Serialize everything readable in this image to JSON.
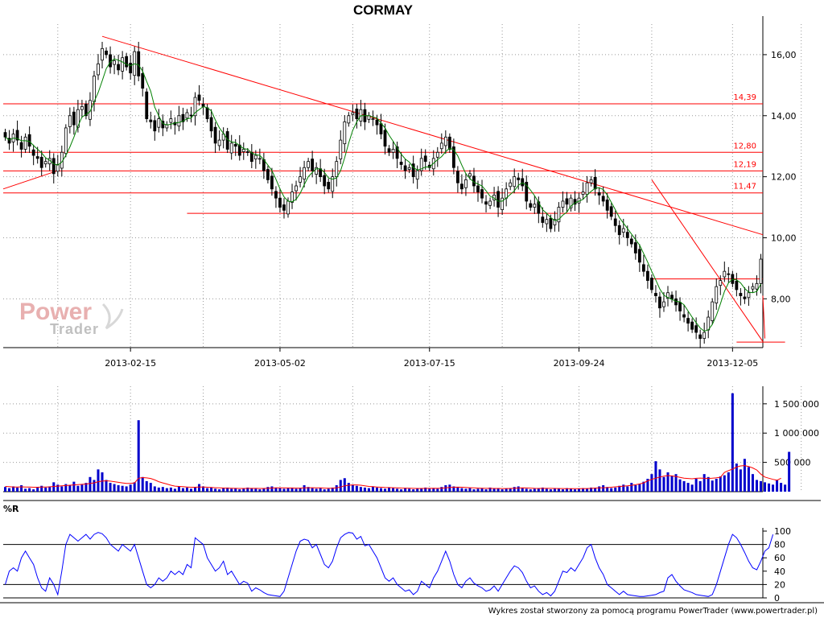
{
  "title": "CORMAY",
  "footer": "Wykres został stworzony za pomocą programu PowerTrader (www.powertrader.pl)",
  "logo": {
    "line1": "Power",
    "line2": "Trader"
  },
  "colors": {
    "up_candle": "#ffffff",
    "down_candle": "#000000",
    "moving_average": "#008000",
    "trend_lines": "#ff0000",
    "volume_bars": "#0000cc",
    "volume_average": "#ff0000",
    "williams_r": "#0000ff",
    "grid": "#999999"
  },
  "chart_data": [
    {
      "type": "candlestick",
      "title": "CORMAY",
      "x_tick_labels": [
        "2013-02-15",
        "2013-05-02",
        "2013-07-15",
        "2013-09-24",
        "2013-12-05"
      ],
      "y_tick_labels": [
        "8,00",
        "10,00",
        "12,00",
        "14,00",
        "16,00"
      ],
      "ylim": [
        6.4,
        17.0
      ],
      "grid": true,
      "close_series": [
        13.3,
        13.1,
        13.4,
        13.2,
        12.9,
        13.3,
        13.0,
        12.7,
        12.6,
        12.3,
        12.5,
        12.6,
        12.1,
        12.4,
        12.8,
        13.6,
        14.0,
        13.7,
        14.2,
        14.3,
        14.0,
        14.5,
        15.3,
        15.7,
        16.2,
        16.0,
        15.6,
        15.8,
        15.5,
        15.9,
        15.6,
        15.4,
        16.1,
        15.3,
        14.9,
        13.9,
        13.8,
        13.5,
        13.9,
        13.6,
        13.7,
        13.9,
        13.7,
        14.0,
        13.8,
        14.1,
        14.0,
        14.6,
        14.5,
        14.3,
        13.9,
        13.5,
        13.1,
        13.2,
        13.4,
        12.9,
        13.1,
        13.0,
        12.7,
        12.9,
        12.8,
        12.5,
        12.7,
        12.6,
        12.2,
        11.9,
        11.6,
        11.3,
        11.0,
        10.9,
        11.2,
        11.5,
        11.7,
        12.0,
        12.3,
        12.5,
        12.2,
        12.3,
        12.0,
        11.7,
        11.6,
        12.0,
        12.5,
        13.2,
        13.8,
        14.0,
        14.1,
        13.9,
        14.2,
        13.8,
        14.0,
        13.9,
        13.7,
        13.4,
        13.0,
        12.8,
        12.9,
        12.6,
        12.4,
        12.2,
        12.3,
        12.0,
        12.2,
        12.6,
        12.5,
        12.3,
        12.6,
        12.8,
        13.1,
        13.3,
        12.9,
        12.3,
        11.8,
        11.6,
        11.9,
        12.1,
        11.7,
        11.5,
        11.3,
        11.1,
        11.2,
        11.4,
        11.0,
        11.3,
        11.6,
        11.8,
        12.0,
        11.9,
        11.7,
        11.2,
        11.0,
        11.1,
        10.8,
        10.5,
        10.6,
        10.3,
        10.6,
        11.0,
        11.2,
        11.1,
        11.3,
        11.1,
        11.3,
        11.5,
        11.8,
        11.9,
        11.6,
        11.4,
        11.2,
        10.9,
        10.7,
        10.4,
        10.1,
        10.3,
        10.0,
        9.8,
        9.5,
        9.2,
        8.9,
        8.6,
        8.3,
        8.1,
        7.7,
        7.9,
        8.2,
        8.0,
        7.8,
        7.6,
        7.4,
        7.2,
        7.0,
        6.9,
        6.7,
        6.9,
        7.4,
        7.9,
        8.4,
        8.6,
        8.9,
        8.8,
        8.5,
        8.3,
        8.1,
        8.0,
        8.2,
        8.4,
        8.5,
        9.3
      ],
      "moving_average_period_label": "",
      "horizontal_levels": [
        {
          "value": 14.39,
          "label": "14,39"
        },
        {
          "value": 12.8,
          "label": "12,80"
        },
        {
          "value": 12.19,
          "label": "12,19"
        },
        {
          "value": 11.47,
          "label": "11,47"
        },
        {
          "value": 10.8,
          "label": ""
        },
        {
          "value": 8.65,
          "label": ""
        },
        {
          "value": 6.58,
          "label": ""
        }
      ],
      "trend_lines": [
        {
          "from": [
            0,
            11.6
          ],
          "to": [
            13,
            12.2
          ]
        },
        {
          "from": [
            24,
            16.6
          ],
          "to": [
            208,
            10.1
          ]
        },
        {
          "from": [
            160,
            11.9
          ],
          "to": [
            188,
            6.6
          ]
        },
        {
          "from": [
            188,
            6.7
          ],
          "to": [
            208,
            8.1
          ]
        }
      ]
    },
    {
      "type": "bar",
      "title": "",
      "y_tick_labels": [
        "500 000",
        "1 000 000",
        "1 500 000"
      ],
      "ylim": [
        0,
        1800000
      ],
      "volume": [
        80000,
        60000,
        90000,
        70000,
        110000,
        50000,
        60000,
        40000,
        80000,
        100000,
        70000,
        90000,
        160000,
        120000,
        90000,
        130000,
        110000,
        170000,
        100000,
        120000,
        150000,
        250000,
        200000,
        380000,
        330000,
        200000,
        150000,
        130000,
        110000,
        100000,
        90000,
        120000,
        160000,
        1220000,
        250000,
        180000,
        150000,
        90000,
        70000,
        80000,
        60000,
        70000,
        50000,
        90000,
        60000,
        70000,
        50000,
        80000,
        130000,
        90000,
        60000,
        70000,
        50000,
        40000,
        60000,
        70000,
        50000,
        60000,
        40000,
        50000,
        70000,
        60000,
        50000,
        40000,
        60000,
        80000,
        90000,
        70000,
        60000,
        50000,
        60000,
        70000,
        50000,
        60000,
        110000,
        80000,
        60000,
        50000,
        60000,
        40000,
        50000,
        70000,
        110000,
        200000,
        230000,
        150000,
        120000,
        100000,
        80000,
        70000,
        60000,
        90000,
        70000,
        60000,
        50000,
        70000,
        60000,
        50000,
        40000,
        60000,
        50000,
        40000,
        50000,
        60000,
        70000,
        50000,
        60000,
        50000,
        80000,
        110000,
        120000,
        90000,
        70000,
        60000,
        50000,
        60000,
        40000,
        50000,
        60000,
        40000,
        70000,
        50000,
        60000,
        40000,
        50000,
        60000,
        80000,
        90000,
        60000,
        50000,
        40000,
        50000,
        60000,
        70000,
        50000,
        40000,
        60000,
        50000,
        40000,
        60000,
        50000,
        40000,
        50000,
        60000,
        50000,
        70000,
        60000,
        90000,
        110000,
        80000,
        60000,
        70000,
        100000,
        120000,
        90000,
        150000,
        110000,
        130000,
        170000,
        220000,
        300000,
        520000,
        380000,
        250000,
        330000,
        270000,
        300000,
        210000,
        180000,
        150000,
        120000,
        220000,
        180000,
        300000,
        250000,
        190000,
        220000,
        260000,
        280000,
        330000,
        1680000,
        480000,
        380000,
        560000,
        420000,
        300000,
        200000,
        180000,
        160000,
        140000,
        120000,
        200000,
        150000,
        120000,
        680000
      ],
      "volume_average": [
        90000,
        85000,
        80000,
        80000,
        82000,
        80000,
        78000,
        75000,
        75000,
        78000,
        80000,
        82000,
        90000,
        95000,
        100000,
        105000,
        110000,
        115000,
        120000,
        125000,
        130000,
        140000,
        150000,
        170000,
        180000,
        185000,
        180000,
        170000,
        160000,
        150000,
        140000,
        140000,
        150000,
        230000,
        240000,
        235000,
        225000,
        200000,
        170000,
        150000,
        130000,
        110000,
        95000,
        90000,
        85000,
        80000,
        75000,
        75000,
        80000,
        80000,
        75000,
        72000,
        68000,
        65000,
        62000,
        60000,
        58000,
        57000,
        55000,
        55000,
        56000,
        57000,
        56000,
        55000,
        55000,
        58000,
        62000,
        65000,
        66000,
        65000,
        63000,
        62000,
        61000,
        60000,
        65000,
        68000,
        68000,
        66000,
        64000,
        60000,
        58000,
        60000,
        66000,
        80000,
        100000,
        110000,
        115000,
        115000,
        110000,
        100000,
        90000,
        85000,
        80000,
        76000,
        72000,
        70000,
        68000,
        66000,
        62000,
        60000,
        58000,
        56000,
        55000,
        55000,
        57000,
        57000,
        58000,
        57000,
        60000,
        66000,
        72000,
        76000,
        77000,
        75000,
        72000,
        68000,
        64000,
        60000,
        58000,
        56000,
        56000,
        55000,
        55000,
        54000,
        54000,
        55000,
        58000,
        62000,
        64000,
        63000,
        60000,
        57000,
        55000,
        56000,
        57000,
        56000,
        55000,
        54000,
        53000,
        52000,
        52000,
        52000,
        52000,
        53000,
        54000,
        56000,
        62000,
        66000,
        68000,
        70000,
        75000,
        82000,
        88000,
        95000,
        100000,
        108000,
        118000,
        132000,
        150000,
        185000,
        210000,
        230000,
        250000,
        265000,
        275000,
        270000,
        260000,
        245000,
        230000,
        225000,
        220000,
        228000,
        232000,
        228000,
        226000,
        230000,
        236000,
        246000,
        330000,
        360000,
        385000,
        420000,
        440000,
        445000,
        430000,
        405000,
        370000,
        300000,
        250000,
        230000,
        210000,
        195000,
        230000
      ]
    },
    {
      "type": "line",
      "title": "%R",
      "y_tick_labels": [
        "0",
        "20",
        "40",
        "60",
        "80",
        "100"
      ],
      "ylim": [
        0,
        100
      ],
      "reference_levels": [
        20,
        80
      ],
      "series": [
        {
          "values": [
            20,
            40,
            45,
            40,
            60,
            70,
            60,
            50,
            30,
            15,
            10,
            30,
            20,
            5,
            40,
            80,
            95,
            90,
            85,
            90,
            95,
            88,
            95,
            98,
            96,
            90,
            80,
            75,
            70,
            80,
            75,
            70,
            80,
            60,
            40,
            20,
            15,
            20,
            30,
            25,
            30,
            40,
            35,
            40,
            35,
            50,
            45,
            90,
            85,
            80,
            60,
            50,
            40,
            45,
            55,
            35,
            40,
            30,
            20,
            25,
            22,
            10,
            15,
            12,
            8,
            5,
            4,
            3,
            2,
            10,
            30,
            50,
            70,
            85,
            88,
            86,
            75,
            80,
            65,
            50,
            45,
            55,
            75,
            90,
            95,
            98,
            97,
            88,
            92,
            78,
            80,
            70,
            60,
            45,
            30,
            25,
            30,
            20,
            15,
            10,
            12,
            5,
            10,
            25,
            20,
            15,
            30,
            40,
            55,
            70,
            55,
            35,
            20,
            15,
            25,
            30,
            22,
            18,
            15,
            10,
            12,
            18,
            10,
            20,
            30,
            40,
            48,
            45,
            38,
            25,
            15,
            18,
            10,
            5,
            8,
            3,
            10,
            25,
            40,
            38,
            45,
            40,
            50,
            60,
            75,
            80,
            60,
            45,
            35,
            20,
            15,
            10,
            5,
            10,
            5,
            4,
            3,
            2,
            2,
            3,
            4,
            5,
            8,
            10,
            30,
            35,
            25,
            18,
            12,
            10,
            8,
            5,
            4,
            3,
            2,
            5,
            20,
            40,
            60,
            80,
            95,
            90,
            80,
            68,
            55,
            45,
            42,
            55,
            70,
            75,
            95
          ]
        }
      ]
    }
  ]
}
